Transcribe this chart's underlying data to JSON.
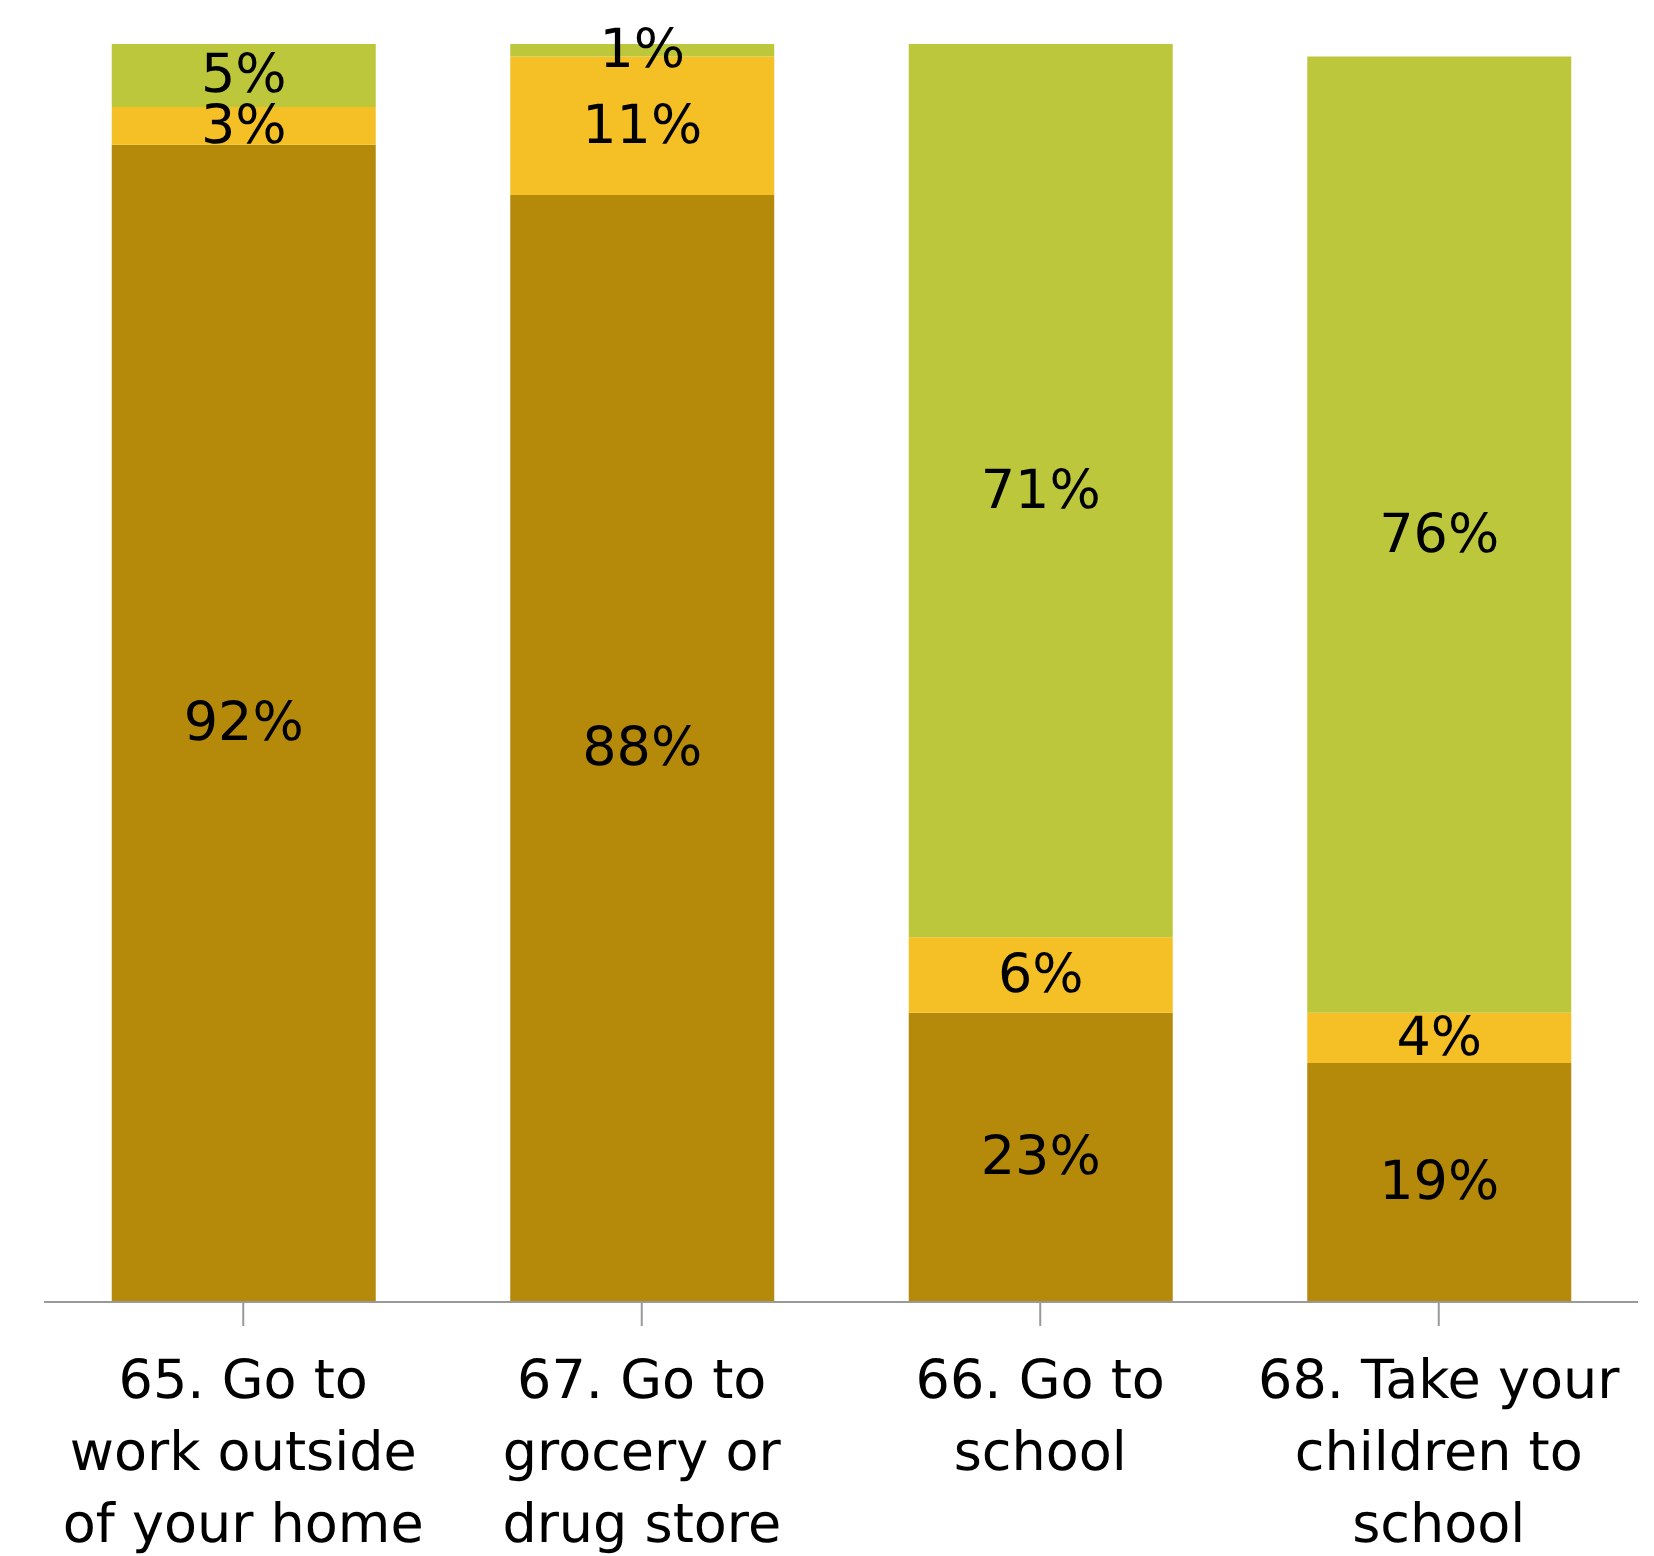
{
  "chart_data": {
    "type": "bar",
    "stacked": true,
    "categories": [
      "65. Go to work outside of your home",
      "67. Go to grocery or drug store",
      "66. Go to school",
      "68. Take your children to school"
    ],
    "series": [
      {
        "color": "#b5890a",
        "values": [
          92,
          88,
          23,
          19
        ],
        "value_labels": [
          "92%",
          "88%",
          "23%",
          "19%"
        ]
      },
      {
        "color": "#f5c025",
        "values": [
          3,
          11,
          6,
          4
        ],
        "value_labels": [
          "3%",
          "11%",
          "6%",
          "4%"
        ]
      },
      {
        "color": "#bdc73b",
        "values": [
          5,
          1,
          71,
          76
        ],
        "value_labels": [
          "5%",
          "1%",
          "71%",
          "76%"
        ]
      }
    ],
    "grid": false,
    "legend": false
  }
}
